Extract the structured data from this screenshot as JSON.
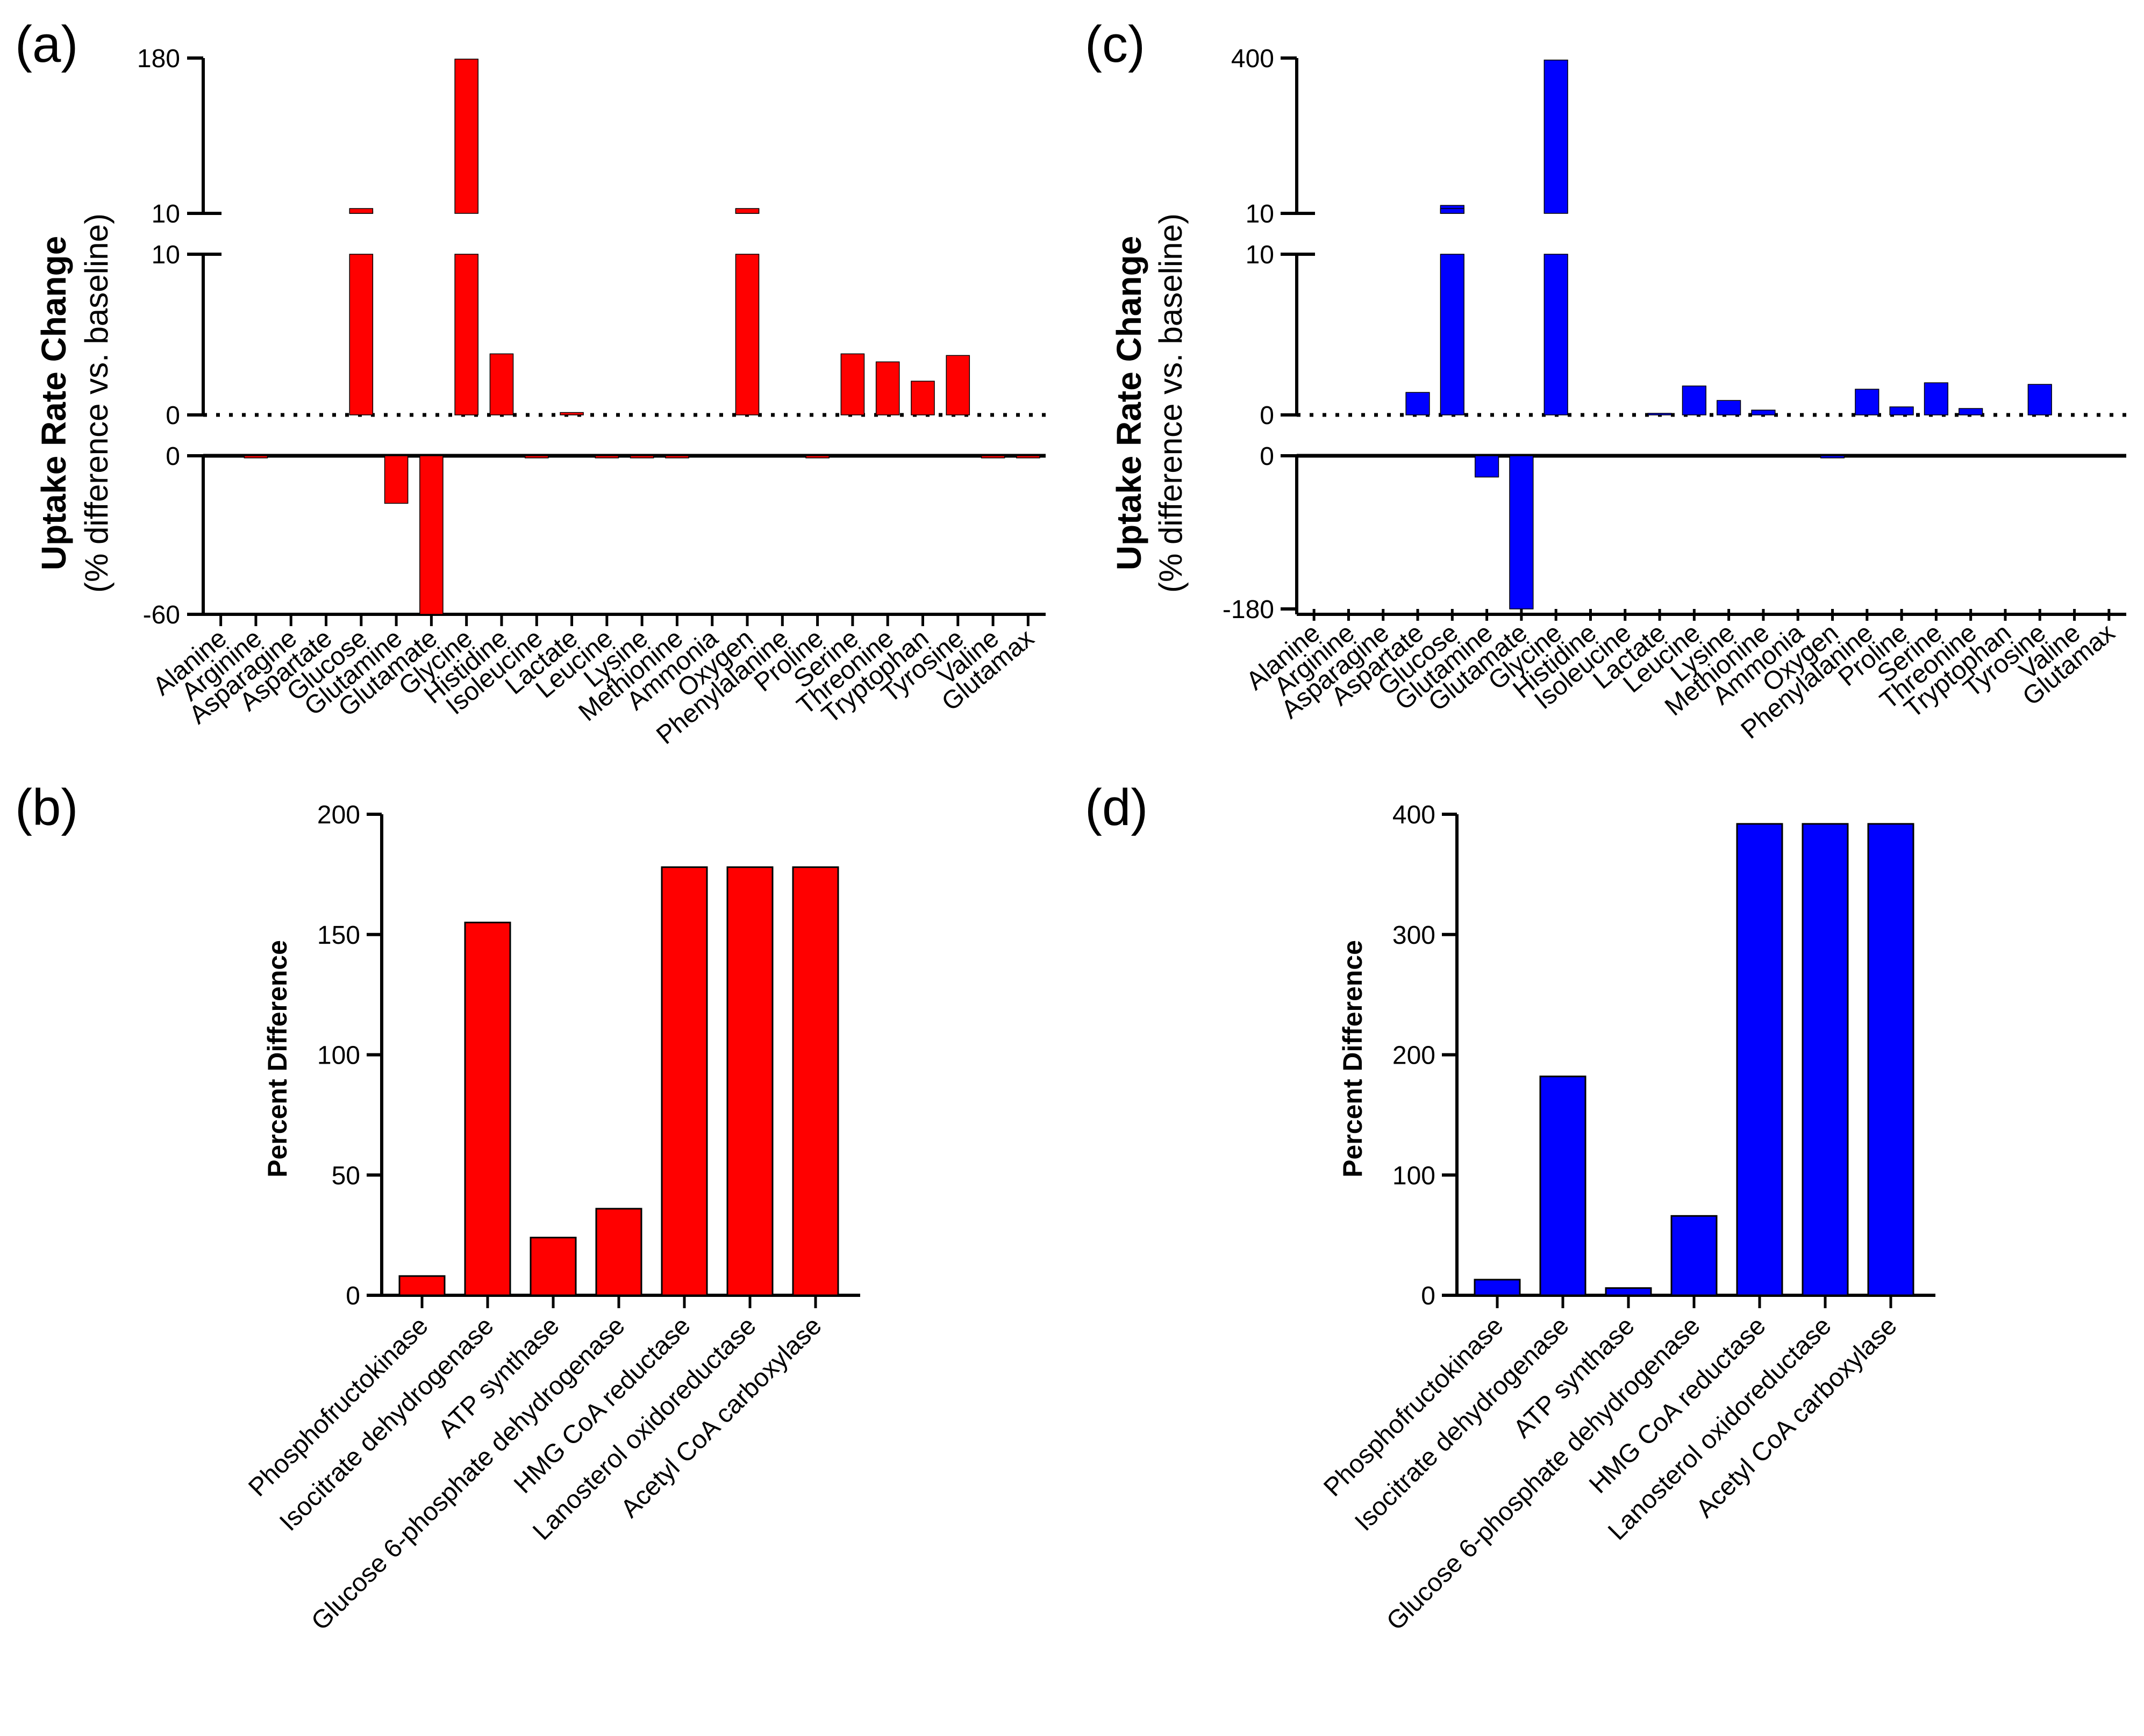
{
  "colors": {
    "panel_a": "#ff0000",
    "panel_c": "#0000ff",
    "axis": "#000000"
  },
  "chart_data": [
    {
      "id": "a",
      "panel_label": "(a)",
      "type": "bar",
      "color": "#ff0000",
      "ylabel": "Uptake Rate Change",
      "ylabel_sub": "(% difference vs. baseline)",
      "ylim": [
        -60,
        180
      ],
      "segments": {
        "top": [
          10,
          180
        ],
        "middle": [
          0,
          10
        ],
        "bottom": [
          -60,
          0
        ]
      },
      "tick_labels": {
        "top_max": "180",
        "top_min": "10",
        "mid_max": "10",
        "mid_min": "0",
        "bot_max": "0",
        "bot_min": "-60"
      },
      "baseline_dotted": true,
      "categories": [
        "Alanine",
        "Arginine",
        "Asparagine",
        "Aspartate",
        "Glucose",
        "Glutamine",
        "Glutamate",
        "Glycine",
        "Histidine",
        "Isoleucine",
        "Lactate",
        "Leucine",
        "Lysine",
        "Methionine",
        "Ammonia",
        "Oxygen",
        "Phenylalanine",
        "Proline",
        "Serine",
        "Threonine",
        "Tryptophan",
        "Tyrosine",
        "Valine",
        "Glutamax"
      ],
      "values": [
        0,
        -0.5,
        0,
        0,
        12,
        -18,
        -60,
        180,
        3.8,
        -0.3,
        0.15,
        -0.8,
        -0.8,
        -0.6,
        0,
        15,
        0,
        -0.6,
        3.8,
        3.3,
        2.1,
        3.7,
        -0.2,
        -0.2
      ]
    },
    {
      "id": "b",
      "panel_label": "(b)",
      "type": "bar",
      "color": "#ff0000",
      "ylabel": "Percent Difference",
      "ylim": [
        0,
        200
      ],
      "ticks": [
        "0",
        "50",
        "100",
        "150",
        "200"
      ],
      "categories": [
        "Phosphofructokinase",
        "Isocitrate dehydrogenase",
        "ATP synthase",
        "Glucose 6-phosphate dehydrogenase",
        "HMG CoA reductase",
        "Lanosterol oxidoreductase",
        "Acetyl CoA carboxylase"
      ],
      "values": [
        8,
        155,
        24,
        36,
        178,
        178,
        178
      ]
    },
    {
      "id": "c",
      "panel_label": "(c)",
      "type": "bar",
      "color": "#0000ff",
      "ylabel": "Uptake Rate Change",
      "ylabel_sub": "(% difference vs. baseline)",
      "ylim": [
        -180,
        400
      ],
      "segments": {
        "top": [
          10,
          400
        ],
        "middle": [
          0,
          10
        ],
        "bottom": [
          -180,
          0
        ]
      },
      "tick_labels": {
        "top_max": "400",
        "top_min": "10",
        "mid_max": "10",
        "mid_min": "0",
        "bot_max": "0",
        "bot_min": "-180"
      },
      "baseline_dotted": true,
      "categories": [
        "Alanine",
        "Arginine",
        "Asparagine",
        "Aspartate",
        "Glucose",
        "Glutamine",
        "Glutamate",
        "Glycine",
        "Histidine",
        "Isoleucine",
        "Lactate",
        "Leucine",
        "Lysine",
        "Methionine",
        "Ammonia",
        "Oxygen",
        "Phenylalanine",
        "Proline",
        "Serine",
        "Threonine",
        "Tryptophan",
        "Tyrosine",
        "Valine",
        "Glutamax"
      ],
      "values": [
        0,
        0,
        0,
        1.4,
        30,
        -25,
        -180,
        395,
        0,
        0,
        0.1,
        1.8,
        0.9,
        0.3,
        0,
        -0.6,
        1.6,
        0.5,
        2.0,
        0.4,
        0,
        1.9,
        0,
        0
      ]
    },
    {
      "id": "d",
      "panel_label": "(d)",
      "type": "bar",
      "color": "#0000ff",
      "ylabel": "Percent Difference",
      "ylim": [
        0,
        400
      ],
      "ticks": [
        "0",
        "100",
        "200",
        "300",
        "400"
      ],
      "categories": [
        "Phosphofructokinase",
        "Isocitrate dehydrogenase",
        "ATP synthase",
        "Glucose 6-phosphate dehydrogenase",
        "HMG CoA reductase",
        "Lanosterol oxidoreductase",
        "Acetyl CoA carboxylase"
      ],
      "values": [
        13,
        182,
        6,
        66,
        392,
        392,
        392
      ]
    }
  ]
}
